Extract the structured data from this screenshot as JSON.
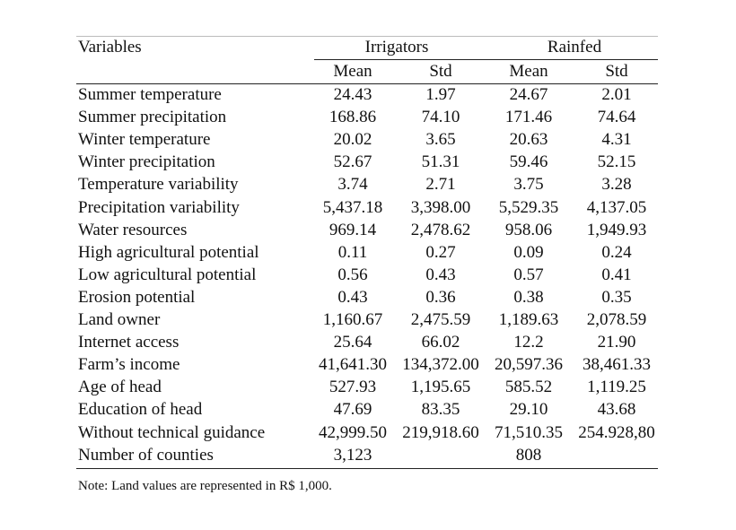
{
  "table": {
    "header": {
      "variables": "Variables",
      "groups": [
        "Irrigators",
        "Rainfed"
      ],
      "subheaders": [
        "Mean",
        "Std",
        "Mean",
        "Std"
      ]
    },
    "rows": [
      [
        "Summer temperature",
        "24.43",
        "1.97",
        "24.67",
        "2.01"
      ],
      [
        "Summer precipitation",
        "168.86",
        "74.10",
        "171.46",
        "74.64"
      ],
      [
        "Winter temperature",
        "20.02",
        "3.65",
        "20.63",
        "4.31"
      ],
      [
        "Winter precipitation",
        "52.67",
        "51.31",
        "59.46",
        "52.15"
      ],
      [
        "Temperature variability",
        "3.74",
        "2.71",
        "3.75",
        "3.28"
      ],
      [
        "Precipitation variability",
        "5,437.18",
        "3,398.00",
        "5,529.35",
        "4,137.05"
      ],
      [
        "Water resources",
        "969.14",
        "2,478.62",
        "958.06",
        "1,949.93"
      ],
      [
        "High agricultural potential",
        "0.11",
        "0.27",
        "0.09",
        "0.24"
      ],
      [
        "Low agricultural potential",
        "0.56",
        "0.43",
        "0.57",
        "0.41"
      ],
      [
        "Erosion potential",
        "0.43",
        "0.36",
        "0.38",
        "0.35"
      ],
      [
        "Land owner",
        "1,160.67",
        "2,475.59",
        "1,189.63",
        "2,078.59"
      ],
      [
        "Internet access",
        "25.64",
        "66.02",
        "12.2",
        "21.90"
      ],
      [
        "Farm’s income",
        "41,641.30",
        "134,372.00",
        "20,597.36",
        "38,461.33"
      ],
      [
        "Age of head",
        "527.93",
        "1,195.65",
        "585.52",
        "1,119.25"
      ],
      [
        "Education of head",
        "47.69",
        "83.35",
        "29.10",
        "43.68"
      ],
      [
        "Without technical guidance",
        "42,999.50",
        "219,918.60",
        "71,510.35",
        "254.928,80"
      ],
      [
        "Number of counties",
        "3,123",
        null,
        "808",
        null
      ]
    ],
    "note": "Note: Land values are represented in R$ 1,000."
  }
}
